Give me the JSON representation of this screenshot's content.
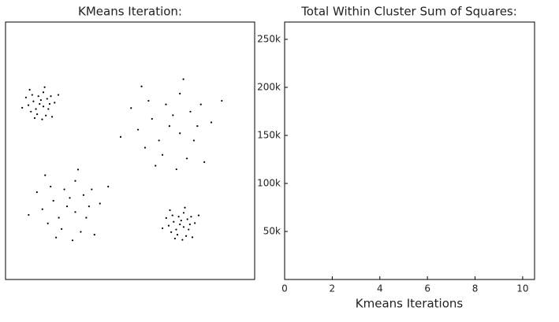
{
  "chart_data": [
    {
      "type": "scatter",
      "title": "KMeans Iteration:",
      "color": "#000000",
      "xlim": [
        0,
        100
      ],
      "ylim": [
        0,
        100
      ],
      "x": [
        14.2,
        11.2,
        17.2,
        12.7,
        18.2,
        9.2,
        15.2,
        10.7,
        16.2,
        12.2,
        19.7,
        8.2,
        14.7,
        13.7,
        16.7,
        10.2,
        15.7,
        6.7,
        18.7,
        13.2,
        17.7,
        11.7,
        21.2,
        9.7,
        15.2,
        67.2,
        58.8,
        75.6,
        63.0,
        78.4,
        53.2,
        70.0,
        57.4,
        72.8,
        61.6,
        82.6,
        50.4,
        68.6,
        65.8,
        74.2,
        56.0,
        71.4,
        46.2,
        79.8,
        64.4,
        77.0,
        60.2,
        86.8,
        54.6,
        70.0,
        25.8,
        19.2,
        32.4,
        22.5,
        34.6,
        14.8,
        28.0,
        18.1,
        30.2,
        21.4,
        37.9,
        12.6,
        26.9,
        24.7,
        31.3,
        17.0,
        29.1,
        9.3,
        35.7,
        23.6,
        33.5,
        20.3,
        41.2,
        15.9,
        28.0,
        70.5,
        67.5,
        73.5,
        69.0,
        74.5,
        65.5,
        71.5,
        67.0,
        72.5,
        68.5,
        76.0,
        64.5,
        71.0,
        70.0,
        73.0,
        66.5,
        72.0,
        63.0,
        75.0,
        69.5,
        74.0,
        68.0,
        77.5,
        66.0,
        71.5
      ],
      "y": [
        69.7,
        69.2,
        66.2,
        64.2,
        71.2,
        67.7,
        72.7,
        71.7,
        63.7,
        66.2,
        68.7,
        70.7,
        62.2,
        68.2,
        70.2,
        65.2,
        74.7,
        66.7,
        63.2,
        71.2,
        68.2,
        62.7,
        71.7,
        73.7,
        67.2,
        63.8,
        62.4,
        54.0,
        48.4,
        68.0,
        58.2,
        72.2,
        69.4,
        47.0,
        54.0,
        61.0,
        66.6,
        42.8,
        59.6,
        65.2,
        51.2,
        77.8,
        55.4,
        45.6,
        68.0,
        59.6,
        44.2,
        69.4,
        75.0,
        56.8,
        31.7,
        30.6,
        24.0,
        19.6,
        35.0,
        27.3,
        38.3,
        36.1,
        18.5,
        24.0,
        29.5,
        33.9,
        15.2,
        28.4,
        32.8,
        21.8,
        42.7,
        25.1,
        17.4,
        35.0,
        28.4,
        16.3,
        36.1,
        40.5,
        26.2,
        22.9,
        22.4,
        19.4,
        17.4,
        24.4,
        20.9,
        25.9,
        24.9,
        16.9,
        19.4,
        21.9,
        23.9,
        15.4,
        21.4,
        23.4,
        18.4,
        27.9,
        19.9,
        16.4,
        24.4,
        21.4,
        15.9,
        24.9,
        26.9,
        20.4
      ]
    },
    {
      "type": "line",
      "title": "Total Within Cluster Sum of Squares:",
      "xlabel": "Kmeans Iterations",
      "xlim": [
        0,
        10.5
      ],
      "xticks": [
        0,
        2,
        4,
        6,
        8,
        10
      ],
      "ylim": [
        0,
        268000
      ],
      "yticks": [
        {
          "value": 50000,
          "label": "50k"
        },
        {
          "value": 100000,
          "label": "100k"
        },
        {
          "value": 150000,
          "label": "150k"
        },
        {
          "value": 200000,
          "label": "200k"
        },
        {
          "value": 250000,
          "label": "250k"
        }
      ]
    }
  ]
}
